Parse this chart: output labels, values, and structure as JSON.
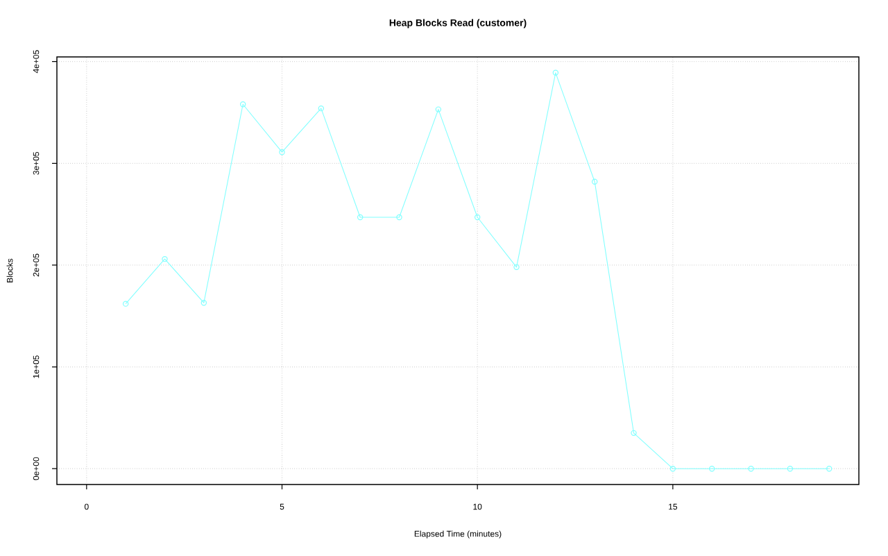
{
  "chart_data": {
    "type": "line",
    "title": "Heap Blocks Read (customer)",
    "xlabel": "Elapsed Time (minutes)",
    "ylabel": "Blocks",
    "x": [
      1,
      2,
      3,
      4,
      5,
      6,
      7,
      8,
      9,
      10,
      11,
      12,
      13,
      14,
      15,
      16,
      17,
      18,
      19
    ],
    "values": [
      162000,
      206000,
      163000,
      358000,
      311000,
      354000,
      247000,
      247000,
      353000,
      247000,
      198000,
      389000,
      282000,
      35000,
      0,
      0,
      0,
      0,
      0
    ],
    "color": "#80ffff",
    "xlim": [
      -0.76,
      19.76
    ],
    "ylim": [
      -15560,
      404560
    ],
    "xticks": [
      0,
      5,
      10,
      15
    ],
    "yticks": [
      {
        "value": 0,
        "label": "0e+00"
      },
      {
        "value": 100000,
        "label": "1e+05"
      },
      {
        "value": 200000,
        "label": "2e+05"
      },
      {
        "value": 300000,
        "label": "3e+05"
      },
      {
        "value": 400000,
        "label": "4e+05"
      }
    ],
    "grid": true,
    "marker": "circle",
    "line_style": "solid"
  }
}
